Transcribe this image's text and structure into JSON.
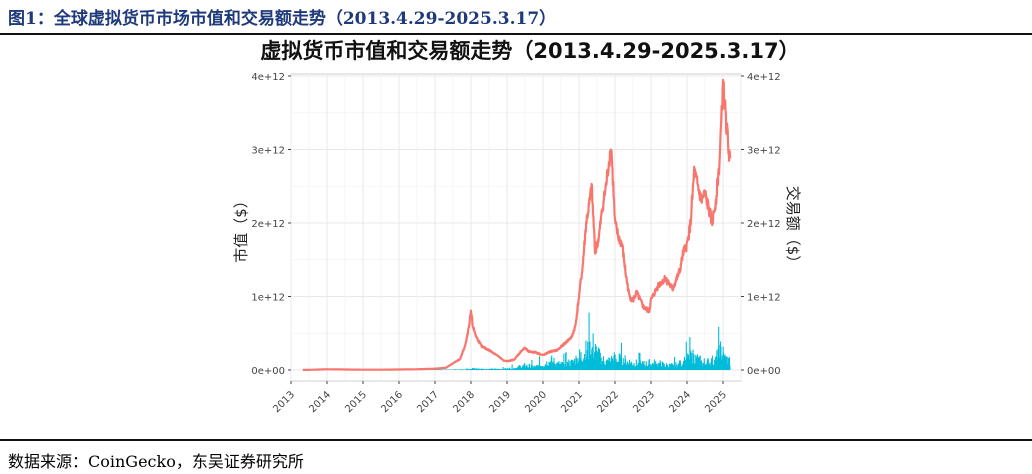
{
  "figure_title": "图1：全球虚拟货币市场市值和交易额走势（2013.4.29-2025.3.17）",
  "source": "数据来源：CoinGecko，东吴证券研究所",
  "colors": {
    "market_cap": "#F8766D",
    "volume": "#00BCD8",
    "grid": "#e8e8e8",
    "panel_border": "#cfcfcf"
  },
  "chart_data": {
    "type": "line",
    "title": "虚拟货币市值和交易额走势（2013.4.29-2025.3.17）",
    "ylabel_left": "市值（$）",
    "ylabel_right": "交易额（$）",
    "x_ticks": [
      "2013",
      "2014",
      "2015",
      "2016",
      "2017",
      "2018",
      "2019",
      "2020",
      "2021",
      "2022",
      "2023",
      "2024",
      "2025"
    ],
    "xlim": [
      2013.0,
      2025.5
    ],
    "ylim": [
      0,
      4000000000000
    ],
    "y_ticks": [
      "0e+00",
      "1e+12",
      "2e+12",
      "3e+12",
      "4e+12"
    ],
    "grid": true,
    "series": [
      {
        "kind": "line",
        "x": [
          2013.33,
          2013.5,
          2014.0,
          2014.5,
          2015.0,
          2015.5,
          2016.0,
          2016.5,
          2017.0,
          2017.3,
          2017.5,
          2017.7,
          2017.85,
          2017.95,
          2018.0,
          2018.05,
          2018.15,
          2018.3,
          2018.5,
          2018.7,
          2018.9,
          2019.0,
          2019.2,
          2019.4,
          2019.5,
          2019.6,
          2019.8,
          2020.0,
          2020.2,
          2020.4,
          2020.6,
          2020.8,
          2020.9,
          2021.0,
          2021.1,
          2021.2,
          2021.3,
          2021.35,
          2021.45,
          2021.55,
          2021.65,
          2021.75,
          2021.85,
          2021.9,
          2022.0,
          2022.1,
          2022.2,
          2022.3,
          2022.4,
          2022.5,
          2022.6,
          2022.8,
          2022.95,
          2023.0,
          2023.2,
          2023.4,
          2023.6,
          2023.8,
          2023.9,
          2024.0,
          2024.1,
          2024.2,
          2024.3,
          2024.4,
          2024.5,
          2024.6,
          2024.7,
          2024.8,
          2024.9,
          2025.0,
          2025.05,
          2025.1,
          2025.2
        ],
        "y": [
          1500000000.0,
          2000000000.0,
          10000000000.0,
          7000000000.0,
          4000000000.0,
          4000000000.0,
          7000000000.0,
          10000000000.0,
          18000000000.0,
          30000000000.0,
          90000000000.0,
          150000000000.0,
          350000000000.0,
          600000000000.0,
          800000000000.0,
          600000000000.0,
          450000000000.0,
          320000000000.0,
          270000000000.0,
          210000000000.0,
          130000000000.0,
          120000000000.0,
          140000000000.0,
          260000000000.0,
          300000000000.0,
          250000000000.0,
          240000000000.0,
          200000000000.0,
          250000000000.0,
          270000000000.0,
          360000000000.0,
          450000000000.0,
          600000000000.0,
          1000000000000.0,
          1400000000000.0,
          2000000000000.0,
          2300000000000.0,
          2500000000000.0,
          1600000000000.0,
          1800000000000.0,
          2200000000000.0,
          2500000000000.0,
          2900000000000.0,
          3000000000000.0,
          2000000000000.0,
          1800000000000.0,
          1700000000000.0,
          1300000000000.0,
          1000000000000.0,
          950000000000.0,
          1050000000000.0,
          850000000000.0,
          800000000000.0,
          950000000000.0,
          1150000000000.0,
          1250000000000.0,
          1100000000000.0,
          1350000000000.0,
          1600000000000.0,
          1700000000000.0,
          2000000000000.0,
          2700000000000.0,
          2500000000000.0,
          2300000000000.0,
          2400000000000.0,
          2200000000000.0,
          2000000000000.0,
          2300000000000.0,
          2800000000000.0,
          3900000000000.0,
          3600000000000.0,
          3300000000000.0,
          2800000000000.0
        ]
      },
      {
        "kind": "volume",
        "x": [
          2013.33,
          2014.0,
          2015.0,
          2016.0,
          2017.0,
          2017.5,
          2017.8,
          2018.0,
          2018.3,
          2018.6,
          2018.9,
          2019.2,
          2019.5,
          2019.8,
          2020.0,
          2020.2,
          2020.5,
          2020.8,
          2021.0,
          2021.2,
          2021.4,
          2021.6,
          2021.8,
          2022.0,
          2022.2,
          2022.4,
          2022.6,
          2022.8,
          2023.0,
          2023.2,
          2023.4,
          2023.6,
          2023.8,
          2024.0,
          2024.2,
          2024.4,
          2024.6,
          2024.8,
          2024.95,
          2025.05,
          2025.2
        ],
        "y": [
          10000000.0,
          50000000.0,
          100000000.0,
          300000000.0,
          1200000000.0,
          4000000000.0,
          12000000000.0,
          30000000000.0,
          20000000000.0,
          18000000000.0,
          20000000000.0,
          40000000000.0,
          80000000000.0,
          60000000000.0,
          120000000000.0,
          180000000000.0,
          100000000000.0,
          140000000000.0,
          250000000000.0,
          350000000000.0,
          450000000000.0,
          200000000000.0,
          160000000000.0,
          220000000000.0,
          180000000000.0,
          160000000000.0,
          120000000000.0,
          110000000000.0,
          130000000000.0,
          120000000000.0,
          90000000000.0,
          80000000000.0,
          110000000000.0,
          200000000000.0,
          250000000000.0,
          150000000000.0,
          150000000000.0,
          190000000000.0,
          380000000000.0,
          240000000000.0,
          150000000000.0
        ]
      }
    ]
  }
}
